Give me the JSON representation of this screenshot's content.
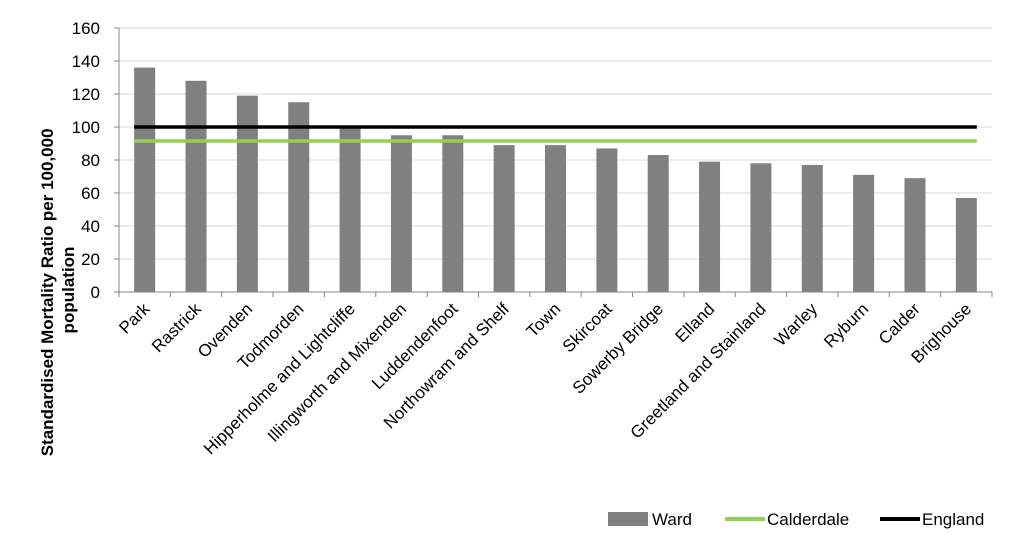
{
  "chart_data": {
    "type": "bar",
    "categories": [
      "Park",
      "Rastrick",
      "Ovenden",
      "Todmorden",
      "Hipperholme and Lightcliffe",
      "Illingworth and Mixenden",
      "Luddendenfoot",
      "Northowram and Shelf",
      "Town",
      "Skircoat",
      "Sowerby Bridge",
      "Elland",
      "Greetland and Stainland",
      "Warley",
      "Ryburn",
      "Calder",
      "Brighouse"
    ],
    "series": [
      {
        "name": "Ward",
        "type": "bar",
        "color": "#808080",
        "values": [
          136,
          128,
          119,
          115,
          100,
          95,
          95,
          89,
          89,
          87,
          83,
          79,
          78,
          77,
          71,
          69,
          57
        ]
      }
    ],
    "reference_lines": [
      {
        "name": "Calderdale",
        "value": 91.5,
        "color": "#92d050"
      },
      {
        "name": "England",
        "value": 100,
        "color": "#000000"
      }
    ],
    "ylabel_lines": [
      "Standardised Mortality Ratio per 100,000",
      "population"
    ],
    "xlabel": "",
    "ylim": [
      0,
      160
    ],
    "yticks": [
      0,
      20,
      40,
      60,
      80,
      100,
      120,
      140,
      160
    ],
    "grid": true,
    "legend_position": "bottom-right"
  }
}
